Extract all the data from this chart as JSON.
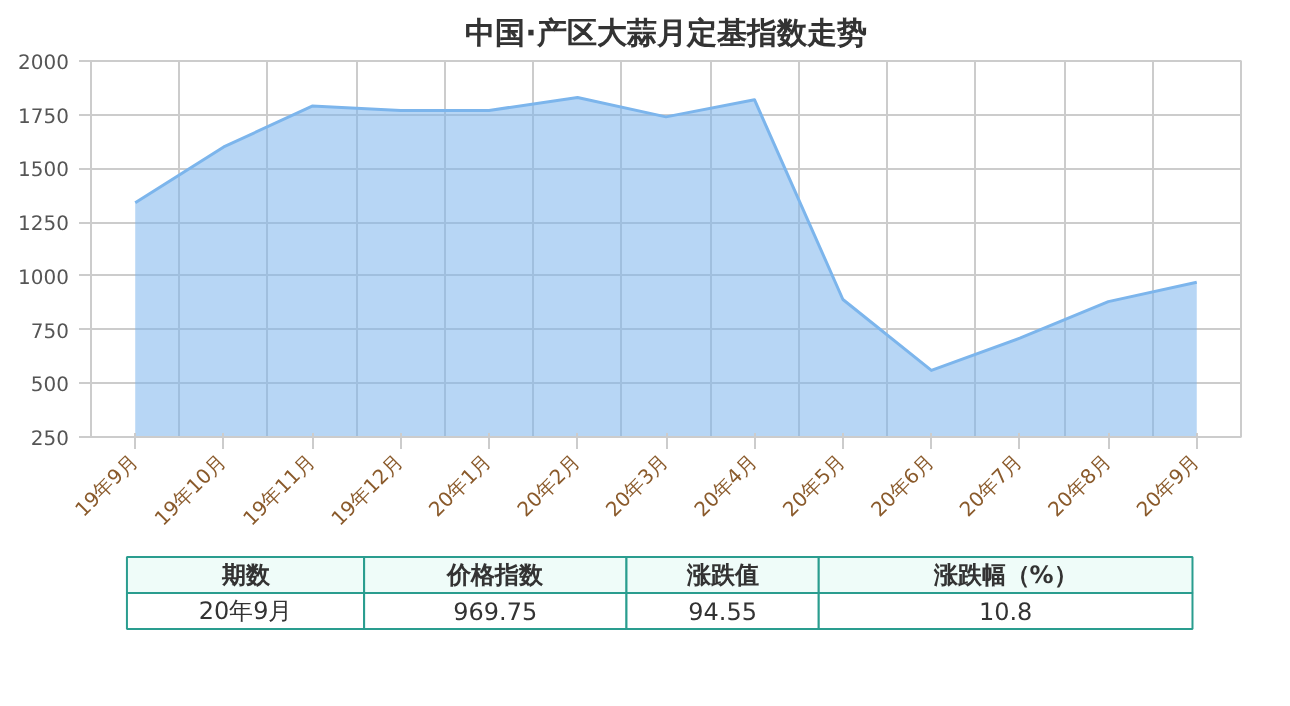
{
  "chart_data": {
    "type": "area",
    "title": "中国·产区大蒜月定基指数走势",
    "categories": [
      "19年9月",
      "19年10月",
      "19年11月",
      "19年12月",
      "20年1月",
      "20年2月",
      "20年3月",
      "20年4月",
      "20年5月",
      "20年6月",
      "20年7月",
      "20年8月",
      "20年9月"
    ],
    "series": [
      {
        "color": "#7cb5ec",
        "values": [
          1340,
          1600,
          1790,
          1770,
          1770,
          1830,
          1740,
          1820,
          890,
          560,
          710,
          880,
          970
        ]
      }
    ],
    "ylim": [
      250,
      2000
    ],
    "yticks": [
      250,
      500,
      750,
      1000,
      1250,
      1500,
      1750,
      2000
    ],
    "grid": true,
    "annotations": [
      "期数",
      "价格指数",
      "涨跌值",
      "涨跌幅（%）",
      "20年9月",
      "969.75",
      "94.55",
      "10.8"
    ]
  }
}
